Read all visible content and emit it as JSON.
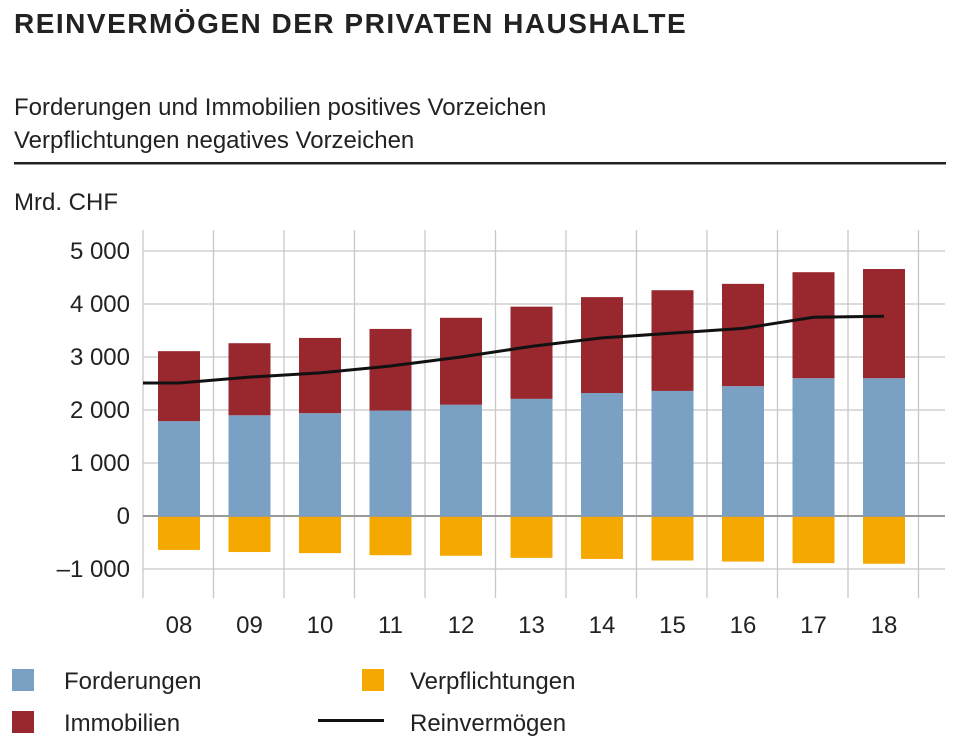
{
  "title": "REINVERMÖGEN DER PRIVATEN HAUSHALTE",
  "subtitle_lines": [
    "Forderungen und Immobilien positives Vorzeichen",
    "Verpflichtungen negatives Vorzeichen"
  ],
  "chart_data": {
    "type": "bar",
    "stacked": true,
    "ylabel": "Mrd. CHF",
    "ylim": [
      -1000,
      5000
    ],
    "yticks": [
      5000,
      4000,
      3000,
      2000,
      1000,
      0,
      -1000
    ],
    "ytick_labels": [
      "5 000",
      "4 000",
      "3 000",
      "2 000",
      "1 000",
      "0",
      "–1 000"
    ],
    "categories": [
      "08",
      "09",
      "10",
      "11",
      "12",
      "13",
      "14",
      "15",
      "16",
      "17",
      "18"
    ],
    "grid": true,
    "legend_placement": "bottom",
    "series": [
      {
        "name": "Forderungen",
        "type": "bar",
        "color": "#7aa0c4",
        "values": [
          1790,
          1900,
          1940,
          1990,
          2100,
          2210,
          2320,
          2360,
          2450,
          2600,
          2600
        ]
      },
      {
        "name": "Immobilien",
        "type": "bar",
        "color": "#98272e",
        "values": [
          1320,
          1360,
          1420,
          1540,
          1640,
          1740,
          1810,
          1900,
          1930,
          2000,
          2060
        ]
      },
      {
        "name": "Verpflichtungen",
        "type": "bar",
        "color": "#f5a800",
        "values": [
          -640,
          -680,
          -700,
          -740,
          -750,
          -790,
          -810,
          -840,
          -860,
          -890,
          -900
        ]
      },
      {
        "name": "Reinvermögen",
        "type": "line",
        "color": "#111111",
        "values": [
          2510,
          2620,
          2700,
          2830,
          3000,
          3200,
          3360,
          3450,
          3540,
          3750,
          3770
        ]
      }
    ]
  }
}
